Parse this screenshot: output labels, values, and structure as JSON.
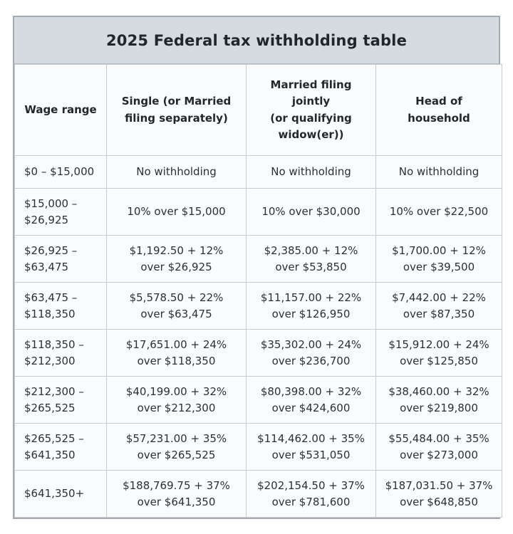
{
  "title": "2025 Federal tax withholding table",
  "colors": {
    "title_band_bg": "#d4dbe1",
    "cell_bg": "#fafbfc",
    "inner_border": "#c5cbd0",
    "outer_border": "#a4abb1",
    "text": "#2b3036"
  },
  "chart_data": {
    "type": "table",
    "title": "2025 Federal tax withholding table",
    "columns": [
      "Wage range",
      "Single (or Married\nfiling separately)",
      "Married filing jointly\n(or qualifying\nwidow(er))",
      "Head of household"
    ],
    "rows": [
      [
        "$0 – $15,000",
        "No withholding",
        "No withholding",
        "No withholding"
      ],
      [
        "$15,000 –\n$26,925",
        "10% over $15,000",
        "10% over $30,000",
        "10% over $22,500"
      ],
      [
        "$26,925 –\n$63,475",
        "$1,192.50 + 12%\nover $26,925",
        "$2,385.00 + 12%\nover $53,850",
        "$1,700.00 + 12%\nover $39,500"
      ],
      [
        "$63,475 –\n$118,350",
        "$5,578.50 + 22%\nover $63,475",
        "$11,157.00 + 22%\nover $126,950",
        "$7,442.00 + 22%\nover $87,350"
      ],
      [
        "$118,350 –\n$212,300",
        "$17,651.00 + 24%\nover $118,350",
        "$35,302.00 + 24%\nover $236,700",
        "$15,912.00 + 24%\nover $125,850"
      ],
      [
        "$212,300 –\n$265,525",
        "$40,199.00 + 32%\nover $212,300",
        "$80,398.00 + 32%\nover $424,600",
        "$38,460.00 + 32%\nover $219,800"
      ],
      [
        "$265,525 –\n$641,350",
        "$57,231.00 + 35%\nover $265,525",
        "$114,462.00 + 35%\nover $531,050",
        "$55,484.00 + 35%\nover $273,000"
      ],
      [
        "$641,350+",
        "$188,769.75 + 37%\nover $641,350",
        "$202,154.50 + 37%\nover $781,600",
        "$187,031.50 + 37%\nover $648,850"
      ]
    ]
  }
}
